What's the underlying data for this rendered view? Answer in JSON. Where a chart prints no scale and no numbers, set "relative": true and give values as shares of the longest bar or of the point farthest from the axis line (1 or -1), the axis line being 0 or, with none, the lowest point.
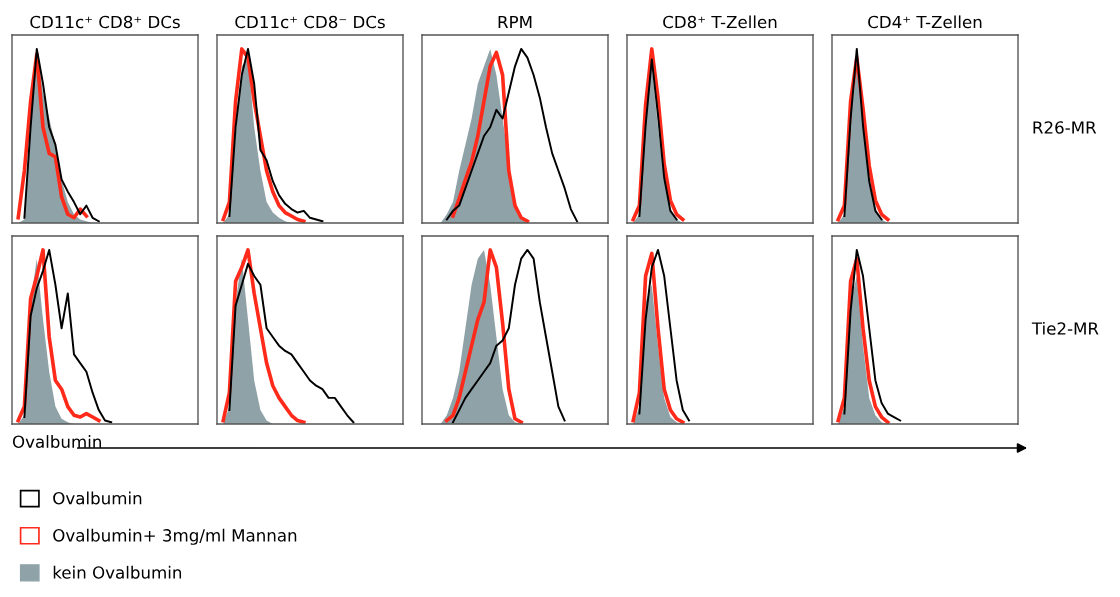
{
  "chart_data": [
    {
      "type": "line",
      "relative": true,
      "tick_labels": false,
      "legend": "bottom",
      "title": "CD11c⁺ CD8⁺ DCs",
      "categories": [
        null,
        null,
        null,
        null,
        null,
        null,
        null,
        null,
        null,
        null,
        null,
        null,
        null,
        null,
        null,
        null,
        null,
        null,
        null,
        null,
        null,
        null,
        null,
        null,
        null,
        null,
        null,
        null,
        null,
        null,
        null
      ],
      "series": [
        {
          "name": "kein Ovalbumin",
          "type": "area",
          "color": "#8fa2a8",
          "values": [
            0,
            0,
            0.02,
            0.55,
            1.0,
            0.75,
            0.6,
            0.45,
            0.25,
            0.12,
            0.05,
            0.02,
            0.01,
            0,
            0,
            0,
            0,
            0,
            0,
            0,
            0,
            0,
            0,
            0,
            0,
            0,
            0,
            0,
            0,
            0,
            0
          ]
        },
        {
          "name": "Ovalbumin+ 3mg/ml Mannan",
          "color": "#ff2a1a",
          "values": [
            null,
            0.03,
            0.3,
            0.7,
            0.97,
            0.55,
            0.4,
            0.38,
            0.15,
            0.05,
            0.03,
            0.08,
            0.04,
            null,
            null,
            null,
            null,
            null,
            null,
            null,
            null,
            null,
            null,
            null,
            null,
            null,
            null,
            null,
            null,
            null,
            null
          ]
        },
        {
          "name": "Ovalbumin",
          "color": "#000000",
          "values": [
            null,
            null,
            0.03,
            0.55,
            1.0,
            0.8,
            0.55,
            0.45,
            0.25,
            0.18,
            0.12,
            0.05,
            0.1,
            0.03,
            0.01,
            null,
            null,
            null,
            null,
            null,
            null,
            null,
            null,
            null,
            null,
            null,
            null,
            null,
            null,
            null,
            null
          ]
        }
      ]
    },
    {
      "type": "line",
      "relative": true,
      "tick_labels": false,
      "title": "CD11c⁺ CD8⁻ DCs",
      "categories": [
        null,
        null,
        null,
        null,
        null,
        null,
        null,
        null,
        null,
        null,
        null,
        null,
        null,
        null,
        null,
        null,
        null,
        null,
        null,
        null,
        null,
        null,
        null,
        null,
        null,
        null,
        null,
        null,
        null,
        null,
        null
      ],
      "series": [
        {
          "type": "area",
          "color": "#8fa2a8",
          "values": [
            0,
            0,
            0.05,
            0.5,
            0.9,
            0.95,
            0.55,
            0.3,
            0.12,
            0.06,
            0.03,
            0.01,
            0,
            0,
            0,
            0,
            0,
            0,
            0,
            0,
            0,
            0,
            0,
            0,
            0,
            0,
            0,
            0,
            0,
            0,
            0
          ]
        },
        {
          "color": "#ff2a1a",
          "values": [
            null,
            0.02,
            0.12,
            0.7,
            1.0,
            0.95,
            0.7,
            0.5,
            0.3,
            0.18,
            0.1,
            0.06,
            0.04,
            0.02,
            0.01,
            null,
            null,
            null,
            null,
            null,
            null,
            null,
            null,
            null,
            null,
            null,
            null,
            null,
            null,
            null,
            null
          ]
        },
        {
          "color": "#000000",
          "values": [
            null,
            null,
            0.04,
            0.55,
            0.85,
            1.0,
            0.8,
            0.42,
            0.36,
            0.24,
            0.16,
            0.11,
            0.08,
            0.06,
            0.07,
            0.03,
            0.02,
            0.01,
            null,
            null,
            null,
            null,
            null,
            null,
            null,
            null,
            null,
            null,
            null,
            null,
            null
          ]
        }
      ]
    },
    {
      "type": "line",
      "relative": true,
      "tick_labels": false,
      "title": "RPM",
      "categories": [
        null,
        null,
        null,
        null,
        null,
        null,
        null,
        null,
        null,
        null,
        null,
        null,
        null,
        null,
        null,
        null,
        null,
        null,
        null,
        null,
        null,
        null,
        null,
        null,
        null,
        null,
        null,
        null,
        null,
        null,
        null
      ],
      "series": [
        {
          "type": "area",
          "color": "#8fa2a8",
          "values": [
            0,
            0,
            0,
            0,
            0.05,
            0.12,
            0.3,
            0.45,
            0.6,
            0.8,
            0.9,
            1.0,
            0.85,
            0.6,
            0.35,
            0.1,
            0.02,
            0,
            0,
            0,
            0,
            0,
            0,
            0,
            0,
            0,
            0,
            0,
            0,
            0,
            0
          ]
        },
        {
          "color": "#ff2a1a",
          "values": [
            null,
            null,
            null,
            null,
            null,
            0.04,
            0.14,
            0.25,
            0.35,
            0.5,
            0.7,
            0.9,
            0.98,
            0.85,
            0.3,
            0.1,
            0.03,
            0.01,
            null,
            null,
            null,
            null,
            null,
            null,
            null,
            null,
            null,
            null,
            null,
            null,
            null
          ]
        },
        {
          "color": "#000000",
          "values": [
            null,
            null,
            null,
            null,
            0.02,
            0.07,
            0.1,
            0.2,
            0.3,
            0.4,
            0.5,
            0.55,
            0.65,
            0.6,
            0.75,
            0.9,
            1.0,
            0.95,
            0.85,
            0.72,
            0.55,
            0.4,
            0.3,
            0.2,
            0.08,
            0.01,
            null,
            null,
            null,
            null,
            null
          ]
        }
      ]
    },
    {
      "type": "line",
      "relative": true,
      "tick_labels": false,
      "title": "CD8⁺ T-Zellen",
      "categories": [
        null,
        null,
        null,
        null,
        null,
        null,
        null,
        null,
        null,
        null,
        null,
        null,
        null,
        null,
        null,
        null,
        null,
        null,
        null,
        null,
        null,
        null,
        null,
        null,
        null,
        null,
        null,
        null,
        null,
        null,
        null
      ],
      "series": [
        {
          "type": "area",
          "color": "#8fa2a8",
          "values": [
            0,
            0,
            0.05,
            0.6,
            0.9,
            0.55,
            0.25,
            0.08,
            0.02,
            0,
            0,
            0,
            0,
            0,
            0,
            0,
            0,
            0,
            0,
            0,
            0,
            0,
            0,
            0,
            0,
            0,
            0,
            0,
            0,
            0,
            0
          ]
        },
        {
          "color": "#ff2a1a",
          "values": [
            null,
            0.02,
            0.1,
            0.68,
            1.0,
            0.72,
            0.34,
            0.13,
            0.05,
            0.02,
            null,
            null,
            null,
            null,
            null,
            null,
            null,
            null,
            null,
            null,
            null,
            null,
            null,
            null,
            null,
            null,
            null,
            null,
            null,
            null,
            null
          ]
        },
        {
          "color": "#000000",
          "values": [
            null,
            null,
            0.04,
            0.56,
            0.94,
            0.62,
            0.26,
            0.07,
            0.02,
            null,
            null,
            null,
            null,
            null,
            null,
            null,
            null,
            null,
            null,
            null,
            null,
            null,
            null,
            null,
            null,
            null,
            null,
            null,
            null,
            null,
            null
          ]
        }
      ]
    },
    {
      "type": "line",
      "relative": true,
      "tick_labels": false,
      "title": "CD4⁺ T-Zellen",
      "y2label": "R26-MR",
      "categories": [
        null,
        null,
        null,
        null,
        null,
        null,
        null,
        null,
        null,
        null,
        null,
        null,
        null,
        null,
        null,
        null,
        null,
        null,
        null,
        null,
        null,
        null,
        null,
        null,
        null,
        null,
        null,
        null,
        null,
        null,
        null
      ],
      "series": [
        {
          "type": "area",
          "color": "#8fa2a8",
          "values": [
            0,
            0,
            0.05,
            0.6,
            0.9,
            0.55,
            0.25,
            0.08,
            0.02,
            0,
            0,
            0,
            0,
            0,
            0,
            0,
            0,
            0,
            0,
            0,
            0,
            0,
            0,
            0,
            0,
            0,
            0,
            0,
            0,
            0,
            0
          ]
        },
        {
          "color": "#ff2a1a",
          "values": [
            null,
            0.02,
            0.1,
            0.7,
            0.95,
            0.66,
            0.33,
            0.13,
            0.05,
            0.02,
            null,
            null,
            null,
            null,
            null,
            null,
            null,
            null,
            null,
            null,
            null,
            null,
            null,
            null,
            null,
            null,
            null,
            null,
            null,
            null,
            null
          ]
        },
        {
          "color": "#000000",
          "values": [
            null,
            null,
            0.04,
            0.6,
            1.0,
            0.56,
            0.24,
            0.07,
            0.02,
            null,
            null,
            null,
            null,
            null,
            null,
            null,
            null,
            null,
            null,
            null,
            null,
            null,
            null,
            null,
            null,
            null,
            null,
            null,
            null,
            null,
            null
          ]
        }
      ]
    },
    {
      "type": "line",
      "relative": true,
      "tick_labels": false,
      "xlabel": "Ovalbumin",
      "categories": [
        null,
        null,
        null,
        null,
        null,
        null,
        null,
        null,
        null,
        null,
        null,
        null,
        null,
        null,
        null,
        null,
        null,
        null,
        null,
        null,
        null,
        null,
        null,
        null,
        null,
        null,
        null,
        null,
        null,
        null,
        null
      ],
      "series": [
        {
          "type": "area",
          "color": "#8fa2a8",
          "values": [
            0,
            0,
            0.05,
            0.7,
            0.95,
            0.6,
            0.3,
            0.1,
            0.03,
            0.01,
            0,
            0,
            0,
            0,
            0,
            0,
            0,
            0,
            0,
            0,
            0,
            0,
            0,
            0,
            0,
            0,
            0,
            0,
            0,
            0,
            0
          ]
        },
        {
          "color": "#ff2a1a",
          "values": [
            null,
            0.02,
            0.1,
            0.72,
            0.85,
            1.0,
            0.5,
            0.25,
            0.2,
            0.1,
            0.05,
            0.04,
            0.06,
            0.04,
            0.02,
            null,
            null,
            null,
            null,
            null,
            null,
            null,
            null,
            null,
            null,
            null,
            null,
            null,
            null,
            null,
            null
          ]
        },
        {
          "color": "#000000",
          "values": [
            null,
            null,
            0.04,
            0.62,
            0.78,
            0.88,
            1.0,
            0.8,
            0.55,
            0.75,
            0.4,
            0.35,
            0.3,
            0.18,
            0.08,
            0.02,
            0.01,
            null,
            null,
            null,
            null,
            null,
            null,
            null,
            null,
            null,
            null,
            null,
            null,
            null,
            null
          ]
        }
      ]
    },
    {
      "type": "line",
      "relative": true,
      "tick_labels": false,
      "categories": [
        null,
        null,
        null,
        null,
        null,
        null,
        null,
        null,
        null,
        null,
        null,
        null,
        null,
        null,
        null,
        null,
        null,
        null,
        null,
        null,
        null,
        null,
        null,
        null,
        null,
        null,
        null,
        null,
        null,
        null,
        null
      ],
      "series": [
        {
          "type": "area",
          "color": "#8fa2a8",
          "values": [
            0,
            0,
            0.1,
            0.7,
            0.95,
            0.6,
            0.25,
            0.08,
            0.02,
            0,
            0,
            0,
            0,
            0,
            0,
            0,
            0,
            0,
            0,
            0,
            0,
            0,
            0,
            0,
            0,
            0,
            0,
            0,
            0,
            0,
            0
          ]
        },
        {
          "color": "#ff2a1a",
          "values": [
            null,
            0.02,
            0.18,
            0.82,
            0.9,
            1.0,
            0.75,
            0.55,
            0.35,
            0.22,
            0.15,
            0.1,
            0.05,
            0.02,
            0.01,
            null,
            null,
            null,
            null,
            null,
            null,
            null,
            null,
            null,
            null,
            null,
            null,
            null,
            null,
            null,
            null
          ]
        },
        {
          "color": "#000000",
          "values": [
            null,
            null,
            0.08,
            0.68,
            0.8,
            0.92,
            0.85,
            0.8,
            0.55,
            0.5,
            0.45,
            0.42,
            0.4,
            0.35,
            0.3,
            0.25,
            0.22,
            0.2,
            0.15,
            0.15,
            0.1,
            0.05,
            0.01,
            null,
            null,
            null,
            null,
            null,
            null,
            null,
            null
          ]
        }
      ]
    },
    {
      "type": "line",
      "relative": true,
      "tick_labels": false,
      "categories": [
        null,
        null,
        null,
        null,
        null,
        null,
        null,
        null,
        null,
        null,
        null,
        null,
        null,
        null,
        null,
        null,
        null,
        null,
        null,
        null,
        null,
        null,
        null,
        null,
        null,
        null,
        null,
        null,
        null,
        null,
        null
      ],
      "series": [
        {
          "type": "area",
          "color": "#8fa2a8",
          "values": [
            0,
            0,
            0,
            0,
            0.05,
            0.15,
            0.3,
            0.55,
            0.8,
            0.95,
            1.0,
            0.8,
            0.5,
            0.2,
            0.05,
            0.01,
            0,
            0,
            0,
            0,
            0,
            0,
            0,
            0,
            0,
            0,
            0,
            0,
            0,
            0,
            0
          ]
        },
        {
          "color": "#ff2a1a",
          "values": [
            null,
            null,
            null,
            null,
            0.02,
            0.05,
            0.15,
            0.3,
            0.45,
            0.6,
            0.7,
            1.0,
            0.9,
            0.58,
            0.2,
            0.03,
            0.01,
            null,
            null,
            null,
            null,
            null,
            null,
            null,
            null,
            null,
            null,
            null,
            null,
            null,
            null
          ]
        },
        {
          "color": "#000000",
          "values": [
            null,
            null,
            null,
            null,
            null,
            0.01,
            0.08,
            0.15,
            0.2,
            0.25,
            0.3,
            0.35,
            0.45,
            0.48,
            0.55,
            0.8,
            0.95,
            1.0,
            0.95,
            0.7,
            0.5,
            0.3,
            0.1,
            0.02,
            null,
            null,
            null,
            null,
            null,
            null,
            null
          ]
        }
      ]
    },
    {
      "type": "line",
      "relative": true,
      "tick_labels": false,
      "categories": [
        null,
        null,
        null,
        null,
        null,
        null,
        null,
        null,
        null,
        null,
        null,
        null,
        null,
        null,
        null,
        null,
        null,
        null,
        null,
        null,
        null,
        null,
        null,
        null,
        null,
        null,
        null,
        null,
        null,
        null,
        null
      ],
      "series": [
        {
          "type": "area",
          "color": "#8fa2a8",
          "values": [
            0,
            0,
            0.1,
            0.7,
            0.8,
            0.45,
            0.15,
            0.04,
            0.01,
            0,
            0,
            0,
            0,
            0,
            0,
            0,
            0,
            0,
            0,
            0,
            0,
            0,
            0,
            0,
            0,
            0,
            0,
            0,
            0,
            0,
            0
          ]
        },
        {
          "color": "#ff2a1a",
          "values": [
            null,
            0.02,
            0.18,
            0.85,
            0.98,
            0.55,
            0.2,
            0.08,
            0.03,
            0.01,
            null,
            null,
            null,
            null,
            null,
            null,
            null,
            null,
            null,
            null,
            null,
            null,
            null,
            null,
            null,
            null,
            null,
            null,
            null,
            null,
            null
          ]
        },
        {
          "color": "#000000",
          "values": [
            null,
            null,
            0.06,
            0.6,
            0.9,
            1.0,
            0.85,
            0.55,
            0.25,
            0.08,
            0.02,
            null,
            null,
            null,
            null,
            null,
            null,
            null,
            null,
            null,
            null,
            null,
            null,
            null,
            null,
            null,
            null,
            null,
            null,
            null,
            null
          ]
        }
      ]
    },
    {
      "type": "line",
      "relative": true,
      "tick_labels": false,
      "y2label": "Tie2-MR",
      "categories": [
        null,
        null,
        null,
        null,
        null,
        null,
        null,
        null,
        null,
        null,
        null,
        null,
        null,
        null,
        null,
        null,
        null,
        null,
        null,
        null,
        null,
        null,
        null,
        null,
        null,
        null,
        null,
        null,
        null,
        null,
        null
      ],
      "series": [
        {
          "type": "area",
          "color": "#8fa2a8",
          "values": [
            0,
            0,
            0.1,
            0.7,
            0.85,
            0.45,
            0.15,
            0.05,
            0.01,
            0,
            0,
            0,
            0,
            0,
            0,
            0,
            0,
            0,
            0,
            0,
            0,
            0,
            0,
            0,
            0,
            0,
            0,
            0,
            0,
            0,
            0
          ]
        },
        {
          "color": "#ff2a1a",
          "values": [
            null,
            0.02,
            0.15,
            0.82,
            0.95,
            0.55,
            0.25,
            0.1,
            0.04,
            0.01,
            null,
            null,
            null,
            null,
            null,
            null,
            null,
            null,
            null,
            null,
            null,
            null,
            null,
            null,
            null,
            null,
            null,
            null,
            null,
            null,
            null
          ]
        },
        {
          "color": "#000000",
          "values": [
            null,
            null,
            0.06,
            0.65,
            1.0,
            0.85,
            0.55,
            0.25,
            0.12,
            0.06,
            0.04,
            0.02,
            null,
            null,
            null,
            null,
            null,
            null,
            null,
            null,
            null,
            null,
            null,
            null,
            null,
            null,
            null,
            null,
            null,
            null,
            null
          ]
        }
      ]
    }
  ]
}
